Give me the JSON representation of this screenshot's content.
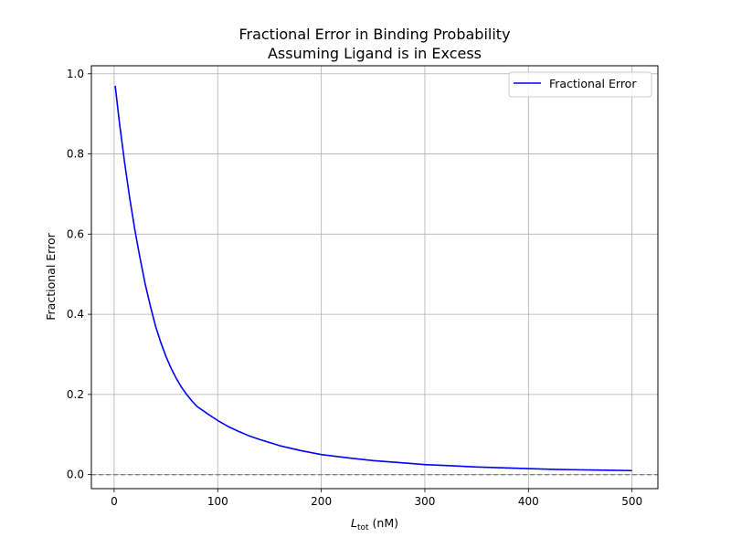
{
  "chart_data": {
    "type": "line",
    "title_lines": [
      "Fractional Error in Binding Probability",
      "Assuming Ligand is in Excess"
    ],
    "xlabel_main": "L",
    "xlabel_sub": "tot",
    "xlabel_unit": " (nM)",
    "ylabel": "Fractional Error",
    "xlim": [
      -22,
      525
    ],
    "ylim": [
      -0.035,
      1.02
    ],
    "xticks": [
      0,
      100,
      200,
      300,
      400,
      500
    ],
    "yticks": [
      0.0,
      0.2,
      0.4,
      0.6,
      0.8,
      1.0
    ],
    "xtick_labels": [
      "0",
      "100",
      "200",
      "300",
      "400",
      "500"
    ],
    "ytick_labels": [
      "0.0",
      "0.2",
      "0.4",
      "0.6",
      "0.8",
      "1.0"
    ],
    "grid": true,
    "legend_position": "top-right",
    "series": [
      {
        "name": "Fractional Error",
        "color": "#0000ff",
        "x": [
          1,
          5,
          10,
          15,
          20,
          25,
          30,
          35,
          40,
          45,
          50,
          55,
          60,
          65,
          70,
          75,
          80,
          90,
          100,
          110,
          120,
          130,
          140,
          150,
          160,
          180,
          200,
          225,
          250,
          275,
          300,
          325,
          350,
          375,
          400,
          425,
          450,
          475,
          500
        ],
        "y": [
          0.97,
          0.88,
          0.78,
          0.69,
          0.61,
          0.54,
          0.475,
          0.42,
          0.37,
          0.33,
          0.295,
          0.265,
          0.24,
          0.218,
          0.2,
          0.184,
          0.17,
          0.152,
          0.135,
          0.12,
          0.108,
          0.097,
          0.088,
          0.08,
          0.072,
          0.06,
          0.05,
          0.042,
          0.035,
          0.03,
          0.025,
          0.022,
          0.019,
          0.017,
          0.015,
          0.013,
          0.012,
          0.011,
          0.01
        ]
      }
    ],
    "reference_line": {
      "y": 0.0,
      "color": "#808080",
      "style": "dashed"
    }
  }
}
